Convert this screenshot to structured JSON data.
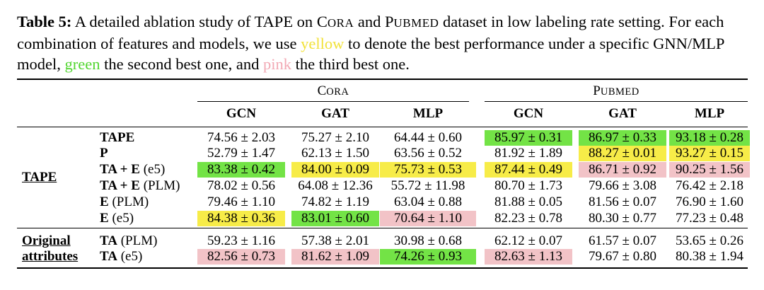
{
  "caption": {
    "label": "Table 5:",
    "part1": " A detailed ablation study of TAPE on ",
    "cora_first": "C",
    "cora_rest": "ORA",
    "and": " and ",
    "pubmed_first": "P",
    "pubmed_rest": "UBMED",
    "part2": " dataset in low labeling rate setting. For each combination of features and models, we use ",
    "yellow_word": "yellow",
    "part3": " to denote the best performance under a specific GNN/MLP model, ",
    "green_word": "green",
    "part4": " the second best one, and ",
    "pink_word": "pink",
    "part5": " the third best one."
  },
  "table": {
    "groups": [
      {
        "first": "C",
        "rest": "ORA"
      },
      {
        "first": "P",
        "rest": "UBMED"
      }
    ],
    "columns": [
      "GCN",
      "GAT",
      "MLP",
      "GCN",
      "GAT",
      "MLP"
    ],
    "sections": [
      {
        "label": "TAPE",
        "rows": [
          {
            "name_bold": "TAPE",
            "name_suffix": "",
            "cells": [
              {
                "v": "74.56 ± 2.03",
                "hl": ""
              },
              {
                "v": "75.27 ± 2.10",
                "hl": ""
              },
              {
                "v": "64.44 ± 0.60",
                "hl": ""
              },
              {
                "v": "85.97 ± 0.31",
                "hl": "green"
              },
              {
                "v": "86.97 ± 0.33",
                "hl": "green"
              },
              {
                "v": "93.18 ± 0.28",
                "hl": "green"
              }
            ]
          },
          {
            "name_bold": "P",
            "name_suffix": "",
            "cells": [
              {
                "v": "52.79 ± 1.47",
                "hl": ""
              },
              {
                "v": "62.13 ± 1.50",
                "hl": ""
              },
              {
                "v": "63.56 ± 0.52",
                "hl": ""
              },
              {
                "v": "81.92 ± 1.89",
                "hl": ""
              },
              {
                "v": "88.27 ± 0.01",
                "hl": "yellow"
              },
              {
                "v": "93.27 ± 0.15",
                "hl": "yellow"
              }
            ]
          },
          {
            "name_bold": "TA + E",
            "name_suffix": " (e5)",
            "cells": [
              {
                "v": "83.38 ± 0.42",
                "hl": "green"
              },
              {
                "v": "84.00 ± 0.09",
                "hl": "yellow"
              },
              {
                "v": "75.73 ± 0.53",
                "hl": "yellow"
              },
              {
                "v": "87.44 ± 0.49",
                "hl": "yellow"
              },
              {
                "v": "86.71 ± 0.92",
                "hl": "pink"
              },
              {
                "v": "90.25 ± 1.56",
                "hl": "pink"
              }
            ]
          },
          {
            "name_bold": "TA + E",
            "name_suffix": " (PLM)",
            "cells": [
              {
                "v": "78.02 ± 0.56",
                "hl": ""
              },
              {
                "v": "64.08 ± 12.36",
                "hl": ""
              },
              {
                "v": "55.72 ± 11.98",
                "hl": ""
              },
              {
                "v": "80.70 ± 1.73",
                "hl": ""
              },
              {
                "v": "79.66 ± 3.08",
                "hl": ""
              },
              {
                "v": "76.42 ± 2.18",
                "hl": ""
              }
            ]
          },
          {
            "name_bold": "E",
            "name_suffix": " (PLM)",
            "cells": [
              {
                "v": "79.46 ± 1.10",
                "hl": ""
              },
              {
                "v": "74.82 ± 1.19",
                "hl": ""
              },
              {
                "v": "63.04 ± 0.88",
                "hl": ""
              },
              {
                "v": "81.88 ± 0.05",
                "hl": ""
              },
              {
                "v": "81.56 ± 0.07",
                "hl": ""
              },
              {
                "v": "76.90 ± 1.60",
                "hl": ""
              }
            ]
          },
          {
            "name_bold": "E",
            "name_suffix": " (e5)",
            "cells": [
              {
                "v": "84.38 ± 0.36",
                "hl": "yellow"
              },
              {
                "v": "83.01 ± 0.60",
                "hl": "green"
              },
              {
                "v": "70.64 ± 1.10",
                "hl": "pink"
              },
              {
                "v": "82.23 ± 0.78",
                "hl": ""
              },
              {
                "v": "80.30 ± 0.77",
                "hl": ""
              },
              {
                "v": "77.23 ± 0.48",
                "hl": ""
              }
            ]
          }
        ]
      },
      {
        "label_line1": "Original",
        "label_line2": "attributes",
        "rows": [
          {
            "name_bold": "TA",
            "name_suffix": " (PLM)",
            "cells": [
              {
                "v": "59.23 ± 1.16",
                "hl": ""
              },
              {
                "v": "57.38 ± 2.01",
                "hl": ""
              },
              {
                "v": "30.98 ± 0.68",
                "hl": ""
              },
              {
                "v": "62.12 ± 0.07",
                "hl": ""
              },
              {
                "v": "61.57 ± 0.07",
                "hl": ""
              },
              {
                "v": "53.65 ± 0.26",
                "hl": ""
              }
            ]
          },
          {
            "name_bold": "TA",
            "name_suffix": " (e5)",
            "cells": [
              {
                "v": "82.56 ± 0.73",
                "hl": "pink"
              },
              {
                "v": "81.62 ± 1.09",
                "hl": "pink"
              },
              {
                "v": "74.26 ± 0.93",
                "hl": "green"
              },
              {
                "v": "82.63 ± 1.13",
                "hl": "pink"
              },
              {
                "v": "79.67 ± 0.80",
                "hl": ""
              },
              {
                "v": "80.38 ± 1.94",
                "hl": ""
              }
            ]
          }
        ]
      }
    ]
  }
}
